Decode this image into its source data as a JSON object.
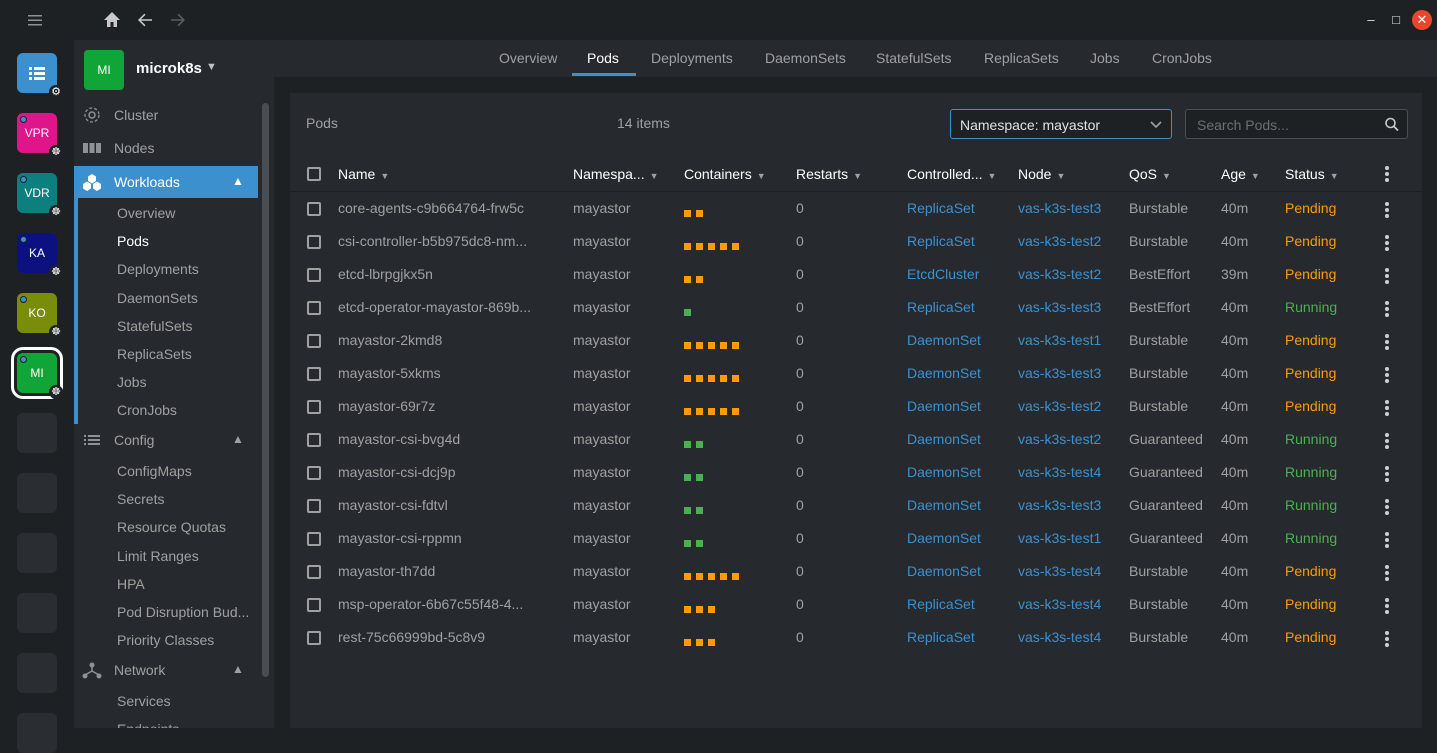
{
  "window": {
    "menu_icon": "hamburger-icon",
    "home_icon": "home-icon",
    "back_icon": "arrow-left-icon",
    "forward_icon": "arrow-right-icon",
    "minimize_glyph": "–",
    "maximize_glyph": "□",
    "close_glyph": "✕"
  },
  "hotbar": {
    "catalog_icon": "catalog-icon",
    "clusters": [
      {
        "label": "VPR",
        "color": "#e0158a"
      },
      {
        "label": "VDR",
        "color": "#0e7f7f"
      },
      {
        "label": "KA",
        "color": "#0b1280"
      },
      {
        "label": "KO",
        "color": "#7a8d0b"
      },
      {
        "label": "MI",
        "color": "#11a538",
        "active": true
      }
    ]
  },
  "sidebar": {
    "cluster_avatar": "MI",
    "cluster_name": "microk8s",
    "cluster_caret": "▼",
    "items": {
      "cluster": "Cluster",
      "nodes": "Nodes",
      "workloads": "Workloads",
      "config": "Config",
      "network": "Network"
    },
    "workloads_sub": [
      "Overview",
      "Pods",
      "Deployments",
      "DaemonSets",
      "StatefulSets",
      "ReplicaSets",
      "Jobs",
      "CronJobs"
    ],
    "config_sub": [
      "ConfigMaps",
      "Secrets",
      "Resource Quotas",
      "Limit Ranges",
      "HPA",
      "Pod Disruption Bud...",
      "Priority Classes"
    ],
    "network_sub": [
      "Services",
      "Endpoints"
    ]
  },
  "tabs": [
    "Overview",
    "Pods",
    "Deployments",
    "DaemonSets",
    "StatefulSets",
    "ReplicaSets",
    "Jobs",
    "CronJobs"
  ],
  "panel": {
    "title": "Pods",
    "count": "14 items",
    "namespace_value": "Namespace: mayastor",
    "search_placeholder": "Search Pods..."
  },
  "columns": [
    "Name",
    "Namespa...",
    "Containers",
    "Restarts",
    "Controlled...",
    "Node",
    "QoS",
    "Age",
    "Status"
  ],
  "colors": {
    "pending": "#ff9a09",
    "running": "#4caf50",
    "accent": "#3d90ce"
  },
  "rows": [
    {
      "name": "core-agents-c9b664764-frw5c",
      "ns": "mayastor",
      "containers": [
        "o",
        "o"
      ],
      "restarts": "0",
      "ctrl": "ReplicaSet",
      "node": "vas-k3s-test3",
      "qos": "Burstable",
      "age": "40m",
      "status": "Pending"
    },
    {
      "name": "csi-controller-b5b975dc8-nm...",
      "ns": "mayastor",
      "containers": [
        "o",
        "o",
        "o",
        "o",
        "o"
      ],
      "restarts": "0",
      "ctrl": "ReplicaSet",
      "node": "vas-k3s-test2",
      "qos": "Burstable",
      "age": "40m",
      "status": "Pending"
    },
    {
      "name": "etcd-lbrpgjkx5n",
      "ns": "mayastor",
      "containers": [
        "o",
        "o"
      ],
      "restarts": "0",
      "ctrl": "EtcdCluster",
      "node": "vas-k3s-test2",
      "qos": "BestEffort",
      "age": "39m",
      "status": "Pending"
    },
    {
      "name": "etcd-operator-mayastor-869b...",
      "ns": "mayastor",
      "containers": [
        "g"
      ],
      "restarts": "0",
      "ctrl": "ReplicaSet",
      "node": "vas-k3s-test3",
      "qos": "BestEffort",
      "age": "40m",
      "status": "Running"
    },
    {
      "name": "mayastor-2kmd8",
      "ns": "mayastor",
      "containers": [
        "o",
        "o",
        "o",
        "o",
        "o"
      ],
      "restarts": "0",
      "ctrl": "DaemonSet",
      "node": "vas-k3s-test1",
      "qos": "Burstable",
      "age": "40m",
      "status": "Pending"
    },
    {
      "name": "mayastor-5xkms",
      "ns": "mayastor",
      "containers": [
        "o",
        "o",
        "o",
        "o",
        "o"
      ],
      "restarts": "0",
      "ctrl": "DaemonSet",
      "node": "vas-k3s-test3",
      "qos": "Burstable",
      "age": "40m",
      "status": "Pending"
    },
    {
      "name": "mayastor-69r7z",
      "ns": "mayastor",
      "containers": [
        "o",
        "o",
        "o",
        "o",
        "o"
      ],
      "restarts": "0",
      "ctrl": "DaemonSet",
      "node": "vas-k3s-test2",
      "qos": "Burstable",
      "age": "40m",
      "status": "Pending"
    },
    {
      "name": "mayastor-csi-bvg4d",
      "ns": "mayastor",
      "containers": [
        "g",
        "g"
      ],
      "restarts": "0",
      "ctrl": "DaemonSet",
      "node": "vas-k3s-test2",
      "qos": "Guaranteed",
      "age": "40m",
      "status": "Running"
    },
    {
      "name": "mayastor-csi-dcj9p",
      "ns": "mayastor",
      "containers": [
        "g",
        "g"
      ],
      "restarts": "0",
      "ctrl": "DaemonSet",
      "node": "vas-k3s-test4",
      "qos": "Guaranteed",
      "age": "40m",
      "status": "Running"
    },
    {
      "name": "mayastor-csi-fdtvl",
      "ns": "mayastor",
      "containers": [
        "g",
        "g"
      ],
      "restarts": "0",
      "ctrl": "DaemonSet",
      "node": "vas-k3s-test3",
      "qos": "Guaranteed",
      "age": "40m",
      "status": "Running"
    },
    {
      "name": "mayastor-csi-rppmn",
      "ns": "mayastor",
      "containers": [
        "g",
        "g"
      ],
      "restarts": "0",
      "ctrl": "DaemonSet",
      "node": "vas-k3s-test1",
      "qos": "Guaranteed",
      "age": "40m",
      "status": "Running"
    },
    {
      "name": "mayastor-th7dd",
      "ns": "mayastor",
      "containers": [
        "o",
        "o",
        "o",
        "o",
        "o"
      ],
      "restarts": "0",
      "ctrl": "DaemonSet",
      "node": "vas-k3s-test4",
      "qos": "Burstable",
      "age": "40m",
      "status": "Pending"
    },
    {
      "name": "msp-operator-6b67c55f48-4...",
      "ns": "mayastor",
      "containers": [
        "o",
        "o",
        "o"
      ],
      "restarts": "0",
      "ctrl": "ReplicaSet",
      "node": "vas-k3s-test4",
      "qos": "Burstable",
      "age": "40m",
      "status": "Pending"
    },
    {
      "name": "rest-75c66999bd-5c8v9",
      "ns": "mayastor",
      "containers": [
        "o",
        "o",
        "o"
      ],
      "restarts": "0",
      "ctrl": "ReplicaSet",
      "node": "vas-k3s-test4",
      "qos": "Burstable",
      "age": "40m",
      "status": "Pending"
    }
  ]
}
